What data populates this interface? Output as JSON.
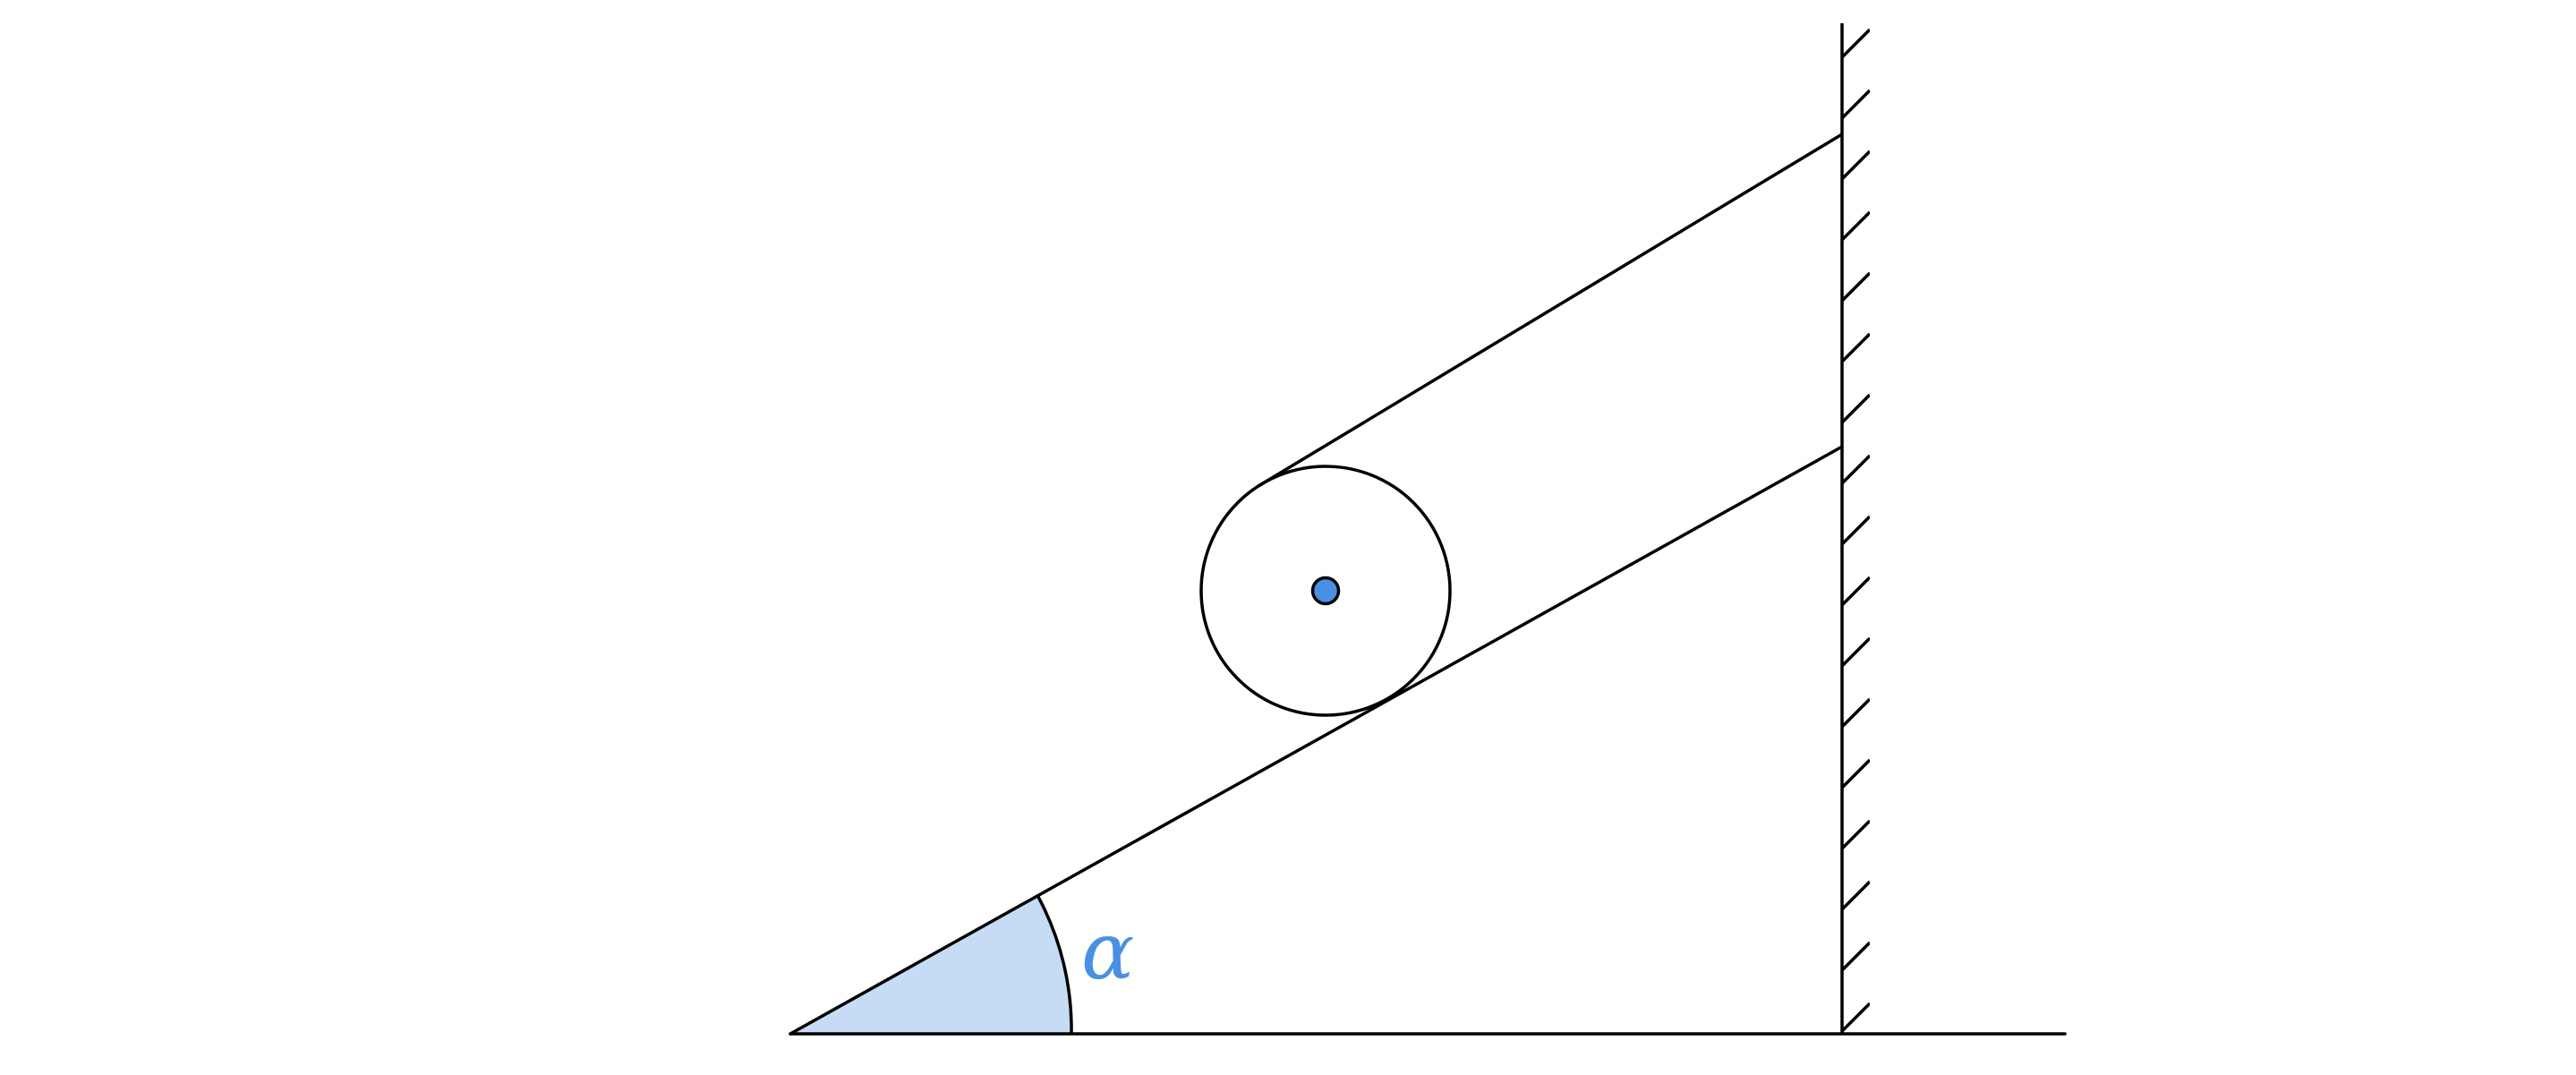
{
  "labels": {
    "angle": "α"
  },
  "colors": {
    "stroke": "#000000",
    "angle_fill": "#c6dcf4",
    "angle_label": "#4a90e2",
    "pivot_fill": "#4a90e2"
  },
  "icons": {
    "pulley_center": "pivot-dot",
    "wall": "hatched-wall"
  }
}
